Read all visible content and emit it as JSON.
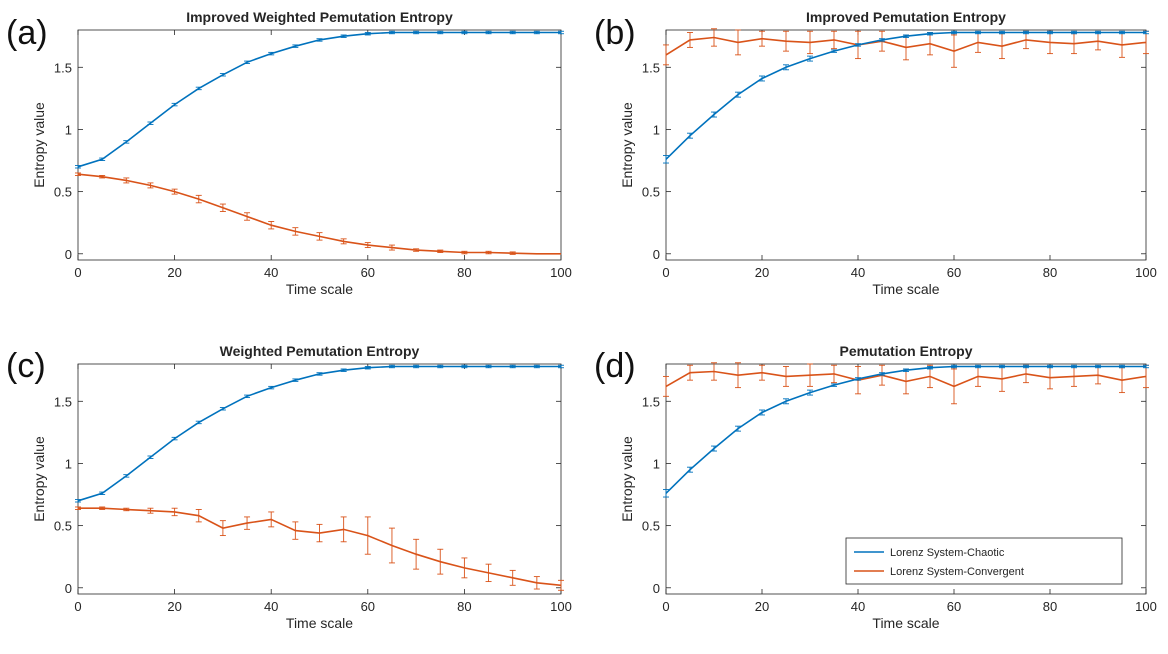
{
  "colors": {
    "chaotic": "#0072BD",
    "convergent": "#D95319",
    "axis": "#262626"
  },
  "legend": {
    "entries": [
      {
        "label": "Lorenz System-Chaotic",
        "color": "#0072BD"
      },
      {
        "label": "Lorenz System-Convergent",
        "color": "#D95319"
      }
    ],
    "panel": "d",
    "location": "lower-right"
  },
  "chart_data": [
    {
      "panel": "(a)",
      "type": "line",
      "title": "Improved Weighted Pemutation Entropy",
      "xlabel": "Time scale",
      "ylabel": "Entropy value",
      "xlim": [
        0,
        100
      ],
      "ylim": [
        -0.05,
        1.8
      ],
      "xticks": [
        "0",
        "20",
        "40",
        "60",
        "80",
        "100"
      ],
      "yticks": [
        "0",
        "0.5",
        "1",
        "1.5"
      ],
      "grid": false,
      "x": [
        0,
        5,
        10,
        15,
        20,
        25,
        30,
        35,
        40,
        45,
        50,
        55,
        60,
        65,
        70,
        75,
        80,
        85,
        90,
        95,
        100
      ],
      "series": [
        {
          "name": "Lorenz System-Chaotic",
          "values": [
            0.7,
            0.76,
            0.9,
            1.05,
            1.2,
            1.33,
            1.44,
            1.54,
            1.61,
            1.67,
            1.72,
            1.75,
            1.77,
            1.78,
            1.78,
            1.78,
            1.78,
            1.78,
            1.78,
            1.78,
            1.78
          ],
          "err": [
            0.01,
            0.01,
            0.01,
            0.01,
            0.01,
            0.01,
            0.01,
            0.01,
            0.01,
            0.01,
            0.01,
            0.01,
            0.01,
            0.01,
            0.01,
            0.01,
            0.01,
            0.01,
            0.01,
            0.01,
            0.01
          ]
        },
        {
          "name": "Lorenz System-Convergent",
          "values": [
            0.64,
            0.62,
            0.59,
            0.55,
            0.5,
            0.44,
            0.37,
            0.3,
            0.23,
            0.18,
            0.14,
            0.1,
            0.07,
            0.05,
            0.03,
            0.02,
            0.01,
            0.01,
            0.005,
            0.0,
            0.0
          ],
          "err": [
            0.01,
            0.01,
            0.02,
            0.02,
            0.02,
            0.03,
            0.03,
            0.03,
            0.03,
            0.03,
            0.03,
            0.02,
            0.02,
            0.02,
            0.01,
            0.01,
            0.01,
            0.01,
            0.01,
            0.0,
            0.0
          ]
        }
      ]
    },
    {
      "panel": "(b)",
      "type": "line",
      "title": "Improved Pemutation Entropy",
      "xlabel": "Time scale",
      "ylabel": "Entropy value",
      "xlim": [
        0,
        100
      ],
      "ylim": [
        -0.05,
        1.8
      ],
      "xticks": [
        "0",
        "20",
        "40",
        "60",
        "80",
        "100"
      ],
      "yticks": [
        "0",
        "0.5",
        "1",
        "1.5"
      ],
      "grid": false,
      "x": [
        0,
        5,
        10,
        15,
        20,
        25,
        30,
        35,
        40,
        45,
        50,
        55,
        60,
        65,
        70,
        75,
        80,
        85,
        90,
        95,
        100
      ],
      "series": [
        {
          "name": "Lorenz System-Chaotic",
          "values": [
            0.76,
            0.95,
            1.12,
            1.28,
            1.41,
            1.5,
            1.57,
            1.63,
            1.68,
            1.72,
            1.75,
            1.77,
            1.78,
            1.78,
            1.78,
            1.78,
            1.78,
            1.78,
            1.78,
            1.78,
            1.78
          ],
          "err": [
            0.03,
            0.02,
            0.02,
            0.02,
            0.02,
            0.02,
            0.02,
            0.01,
            0.01,
            0.01,
            0.01,
            0.01,
            0.01,
            0.01,
            0.01,
            0.01,
            0.01,
            0.01,
            0.01,
            0.01,
            0.01
          ]
        },
        {
          "name": "Lorenz System-Convergent",
          "values": [
            1.6,
            1.72,
            1.74,
            1.7,
            1.73,
            1.71,
            1.7,
            1.72,
            1.68,
            1.71,
            1.66,
            1.69,
            1.63,
            1.7,
            1.67,
            1.72,
            1.7,
            1.69,
            1.71,
            1.68,
            1.7
          ],
          "err": [
            0.08,
            0.06,
            0.07,
            0.1,
            0.06,
            0.08,
            0.09,
            0.07,
            0.11,
            0.08,
            0.1,
            0.09,
            0.13,
            0.08,
            0.1,
            0.07,
            0.09,
            0.08,
            0.07,
            0.1,
            0.09
          ]
        }
      ]
    },
    {
      "panel": "(c)",
      "type": "line",
      "title": "Weighted Pemutation Entropy",
      "xlabel": "Time scale",
      "ylabel": "Entropy value",
      "xlim": [
        0,
        100
      ],
      "ylim": [
        -0.05,
        1.8
      ],
      "xticks": [
        "0",
        "20",
        "40",
        "60",
        "80",
        "100"
      ],
      "yticks": [
        "0",
        "0.5",
        "1",
        "1.5"
      ],
      "grid": false,
      "x": [
        0,
        5,
        10,
        15,
        20,
        25,
        30,
        35,
        40,
        45,
        50,
        55,
        60,
        65,
        70,
        75,
        80,
        85,
        90,
        95,
        100
      ],
      "series": [
        {
          "name": "Lorenz System-Chaotic",
          "values": [
            0.7,
            0.76,
            0.9,
            1.05,
            1.2,
            1.33,
            1.44,
            1.54,
            1.61,
            1.67,
            1.72,
            1.75,
            1.77,
            1.78,
            1.78,
            1.78,
            1.78,
            1.78,
            1.78,
            1.78,
            1.78
          ],
          "err": [
            0.01,
            0.01,
            0.01,
            0.01,
            0.01,
            0.01,
            0.01,
            0.01,
            0.01,
            0.01,
            0.01,
            0.01,
            0.01,
            0.01,
            0.01,
            0.01,
            0.01,
            0.01,
            0.01,
            0.01,
            0.01
          ]
        },
        {
          "name": "Lorenz System-Convergent",
          "values": [
            0.64,
            0.64,
            0.63,
            0.62,
            0.61,
            0.58,
            0.48,
            0.52,
            0.55,
            0.46,
            0.44,
            0.47,
            0.42,
            0.34,
            0.27,
            0.21,
            0.16,
            0.12,
            0.08,
            0.04,
            0.02
          ],
          "err": [
            0.01,
            0.01,
            0.01,
            0.02,
            0.03,
            0.05,
            0.06,
            0.05,
            0.06,
            0.07,
            0.07,
            0.1,
            0.15,
            0.14,
            0.12,
            0.1,
            0.08,
            0.07,
            0.06,
            0.05,
            0.04
          ]
        }
      ]
    },
    {
      "panel": "(d)",
      "type": "line",
      "title": "Pemutation Entropy",
      "xlabel": "Time scale",
      "ylabel": "Entropy value",
      "xlim": [
        0,
        100
      ],
      "ylim": [
        -0.05,
        1.8
      ],
      "xticks": [
        "0",
        "20",
        "40",
        "60",
        "80",
        "100"
      ],
      "yticks": [
        "0",
        "0.5",
        "1",
        "1.5"
      ],
      "grid": false,
      "legend": "lower-right",
      "x": [
        0,
        5,
        10,
        15,
        20,
        25,
        30,
        35,
        40,
        45,
        50,
        55,
        60,
        65,
        70,
        75,
        80,
        85,
        90,
        95,
        100
      ],
      "series": [
        {
          "name": "Lorenz System-Chaotic",
          "values": [
            0.76,
            0.95,
            1.12,
            1.28,
            1.41,
            1.5,
            1.57,
            1.63,
            1.68,
            1.72,
            1.75,
            1.77,
            1.78,
            1.78,
            1.78,
            1.78,
            1.78,
            1.78,
            1.78,
            1.78,
            1.78
          ],
          "err": [
            0.03,
            0.02,
            0.02,
            0.02,
            0.02,
            0.02,
            0.02,
            0.01,
            0.01,
            0.01,
            0.01,
            0.01,
            0.01,
            0.01,
            0.01,
            0.01,
            0.01,
            0.01,
            0.01,
            0.01,
            0.01
          ]
        },
        {
          "name": "Lorenz System-Convergent",
          "values": [
            1.62,
            1.73,
            1.74,
            1.71,
            1.73,
            1.7,
            1.71,
            1.72,
            1.67,
            1.71,
            1.66,
            1.7,
            1.62,
            1.7,
            1.68,
            1.72,
            1.69,
            1.7,
            1.71,
            1.67,
            1.7
          ],
          "err": [
            0.08,
            0.06,
            0.07,
            0.1,
            0.06,
            0.08,
            0.09,
            0.07,
            0.11,
            0.08,
            0.1,
            0.09,
            0.14,
            0.08,
            0.1,
            0.07,
            0.09,
            0.08,
            0.07,
            0.1,
            0.09
          ]
        }
      ]
    }
  ]
}
